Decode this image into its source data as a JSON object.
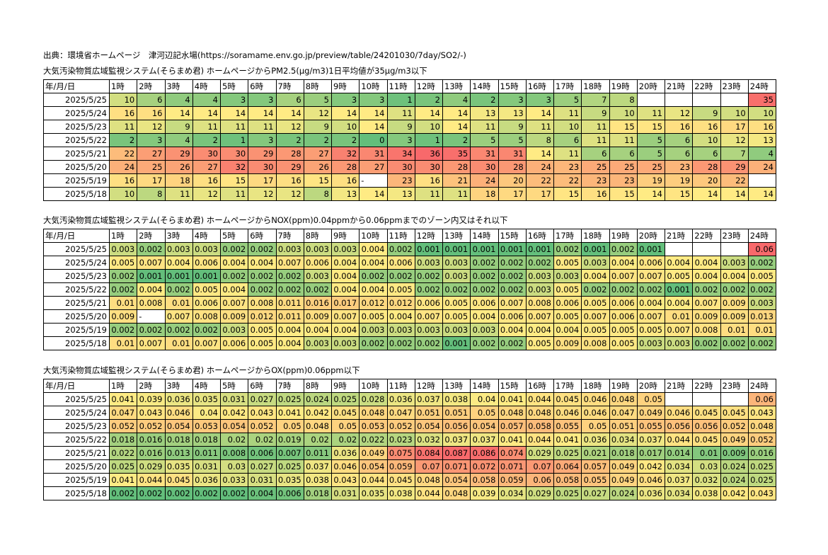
{
  "source_line": "出典：環境省ホームページ　津河辺記水場(https://soramame.env.go.jp/preview/table/24201030/7day/SO2/-)",
  "header_cells": [
    "年/月/日",
    "1時",
    "2時",
    "3時",
    "4時",
    "5時",
    "6時",
    "7時",
    "8時",
    "9時",
    "10時",
    "11時",
    "12時",
    "13時",
    "14時",
    "15時",
    "16時",
    "17時",
    "18時",
    "19時",
    "20時",
    "21時",
    "22時",
    "23時",
    "24時"
  ],
  "tables": [
    {
      "title": "大気汚染物質広域監視システム(そらまめ君) ホームページからPM2.5(μg/m3)1日平均値が35μg/m3以下",
      "threshold": 35,
      "rows": [
        {
          "date": "2025/5/25",
          "values": [
            "10",
            "6",
            "4",
            "4",
            "3",
            "3",
            "6",
            "5",
            "3",
            "3",
            "1",
            "2",
            "4",
            "2",
            "3",
            "3",
            "5",
            "7",
            "8",
            "",
            "",
            "",
            "",
            "35"
          ]
        },
        {
          "date": "2025/5/24",
          "values": [
            "16",
            "16",
            "14",
            "14",
            "14",
            "14",
            "14",
            "12",
            "14",
            "14",
            "11",
            "14",
            "14",
            "13",
            "13",
            "14",
            "11",
            "9",
            "10",
            "11",
            "12",
            "9",
            "10",
            "10"
          ]
        },
        {
          "date": "2025/5/23",
          "values": [
            "11",
            "12",
            "9",
            "11",
            "11",
            "11",
            "12",
            "9",
            "10",
            "14",
            "9",
            "10",
            "14",
            "11",
            "9",
            "11",
            "10",
            "11",
            "15",
            "15",
            "16",
            "16",
            "17",
            "16"
          ]
        },
        {
          "date": "2025/5/22",
          "values": [
            "2",
            "3",
            "4",
            "2",
            "1",
            "3",
            "2",
            "2",
            "2",
            "0",
            "3",
            "1",
            "2",
            "5",
            "5",
            "8",
            "6",
            "11",
            "11",
            "5",
            "6",
            "10",
            "12",
            "13"
          ]
        },
        {
          "date": "2025/5/21",
          "values": [
            "22",
            "27",
            "29",
            "30",
            "30",
            "29",
            "28",
            "27",
            "32",
            "31",
            "34",
            "36",
            "35",
            "31",
            "31",
            "14",
            "11",
            "6",
            "6",
            "5",
            "6",
            "6",
            "7",
            "4"
          ]
        },
        {
          "date": "2025/5/20",
          "values": [
            "24",
            "25",
            "26",
            "27",
            "32",
            "30",
            "29",
            "26",
            "28",
            "27",
            "30",
            "30",
            "28",
            "30",
            "28",
            "24",
            "23",
            "25",
            "25",
            "25",
            "23",
            "28",
            "29",
            "24"
          ]
        },
        {
          "date": "2025/5/19",
          "values": [
            "16",
            "17",
            "18",
            "16",
            "15",
            "17",
            "16",
            "15",
            "16",
            "-",
            "23",
            "16",
            "21",
            "24",
            "20",
            "22",
            "22",
            "23",
            "23",
            "19",
            "19",
            "20",
            "22",
            ""
          ]
        },
        {
          "date": "2025/5/18",
          "values": [
            "10",
            "8",
            "11",
            "12",
            "11",
            "12",
            "12",
            "8",
            "13",
            "14",
            "13",
            "11",
            "11",
            "18",
            "17",
            "17",
            "15",
            "16",
            "15",
            "14",
            "15",
            "14",
            "14",
            "14"
          ]
        }
      ]
    },
    {
      "title": "大気汚染物質広域監視システム(そらまめ君) ホームページからNOX(ppm)0.04ppmから0.06ppmまでのゾーン内又はそれ以下",
      "threshold": 0.06,
      "rows": [
        {
          "date": "2025/5/25",
          "values": [
            "0.003",
            "0.002",
            "0.003",
            "0.003",
            "0.002",
            "0.002",
            "0.003",
            "0.003",
            "0.003",
            "0.004",
            "0.002",
            "0.001",
            "0.001",
            "0.001",
            "0.001",
            "0.001",
            "0.002",
            "0.001",
            "0.002",
            "0.001",
            "",
            "",
            "",
            "0.06"
          ]
        },
        {
          "date": "2025/5/24",
          "values": [
            "0.005",
            "0.007",
            "0.004",
            "0.006",
            "0.004",
            "0.004",
            "0.007",
            "0.006",
            "0.004",
            "0.004",
            "0.006",
            "0.003",
            "0.003",
            "0.002",
            "0.002",
            "0.002",
            "0.005",
            "0.003",
            "0.004",
            "0.006",
            "0.004",
            "0.004",
            "0.003",
            "0.002"
          ]
        },
        {
          "date": "2025/5/23",
          "values": [
            "0.002",
            "0.001",
            "0.001",
            "0.001",
            "0.002",
            "0.002",
            "0.002",
            "0.003",
            "0.004",
            "0.002",
            "0.002",
            "0.002",
            "0.003",
            "0.002",
            "0.002",
            "0.003",
            "0.003",
            "0.004",
            "0.007",
            "0.007",
            "0.005",
            "0.004",
            "0.004",
            "0.005"
          ]
        },
        {
          "date": "2025/5/22",
          "values": [
            "0.002",
            "0.004",
            "0.002",
            "0.005",
            "0.004",
            "0.002",
            "0.002",
            "0.002",
            "0.004",
            "0.004",
            "0.005",
            "0.002",
            "0.002",
            "0.002",
            "0.002",
            "0.003",
            "0.005",
            "0.002",
            "0.002",
            "0.002",
            "0.001",
            "0.002",
            "0.002",
            "0.002"
          ]
        },
        {
          "date": "2025/5/21",
          "values": [
            "0.01",
            "0.008",
            "0.01",
            "0.006",
            "0.007",
            "0.008",
            "0.011",
            "0.016",
            "0.017",
            "0.012",
            "0.012",
            "0.006",
            "0.005",
            "0.006",
            "0.007",
            "0.008",
            "0.006",
            "0.005",
            "0.006",
            "0.004",
            "0.004",
            "0.007",
            "0.009",
            "0.003"
          ]
        },
        {
          "date": "2025/5/20",
          "values": [
            "0.009",
            "-",
            "0.007",
            "0.008",
            "0.009",
            "0.012",
            "0.011",
            "0.009",
            "0.007",
            "0.005",
            "0.004",
            "0.007",
            "0.005",
            "0.004",
            "0.006",
            "0.007",
            "0.005",
            "0.007",
            "0.006",
            "0.007",
            "0.01",
            "0.009",
            "0.009",
            "0.013"
          ]
        },
        {
          "date": "2025/5/19",
          "values": [
            "0.002",
            "0.002",
            "0.002",
            "0.002",
            "0.003",
            "0.005",
            "0.004",
            "0.004",
            "0.004",
            "0.003",
            "0.003",
            "0.003",
            "0.003",
            "0.003",
            "0.004",
            "0.004",
            "0.004",
            "0.005",
            "0.005",
            "0.005",
            "0.007",
            "0.008",
            "0.01",
            "0.01"
          ]
        },
        {
          "date": "2025/5/18",
          "values": [
            "0.01",
            "0.007",
            "0.01",
            "0.007",
            "0.006",
            "0.005",
            "0.004",
            "0.003",
            "0.003",
            "0.002",
            "0.002",
            "0.002",
            "0.001",
            "0.002",
            "0.002",
            "0.005",
            "0.009",
            "0.008",
            "0.005",
            "0.003",
            "0.003",
            "0.002",
            "0.002",
            "0.002"
          ]
        }
      ]
    },
    {
      "title": "大気汚染物質広域監視システム(そらまめ君) ホームページからOX(ppm)0.06ppm以下",
      "threshold": 0.06,
      "rows": [
        {
          "date": "2025/5/25",
          "values": [
            "0.041",
            "0.039",
            "0.036",
            "0.035",
            "0.031",
            "0.027",
            "0.025",
            "0.024",
            "0.025",
            "0.028",
            "0.036",
            "0.037",
            "0.038",
            "0.04",
            "0.041",
            "0.044",
            "0.045",
            "0.046",
            "0.048",
            "0.05",
            "",
            "",
            "",
            "0.06"
          ]
        },
        {
          "date": "2025/5/24",
          "values": [
            "0.047",
            "0.043",
            "0.046",
            "0.04",
            "0.042",
            "0.043",
            "0.041",
            "0.042",
            "0.045",
            "0.048",
            "0.047",
            "0.051",
            "0.051",
            "0.05",
            "0.048",
            "0.048",
            "0.046",
            "0.046",
            "0.047",
            "0.049",
            "0.046",
            "0.045",
            "0.045",
            "0.043"
          ]
        },
        {
          "date": "2025/5/23",
          "values": [
            "0.052",
            "0.052",
            "0.054",
            "0.053",
            "0.054",
            "0.052",
            "0.05",
            "0.048",
            "0.05",
            "0.053",
            "0.052",
            "0.054",
            "0.056",
            "0.054",
            "0.057",
            "0.058",
            "0.055",
            "0.05",
            "0.051",
            "0.055",
            "0.056",
            "0.056",
            "0.052",
            "0.048"
          ]
        },
        {
          "date": "2025/5/22",
          "values": [
            "0.018",
            "0.016",
            "0.018",
            "0.018",
            "0.02",
            "0.02",
            "0.019",
            "0.02",
            "0.02",
            "0.022",
            "0.023",
            "0.032",
            "0.037",
            "0.037",
            "0.041",
            "0.044",
            "0.041",
            "0.036",
            "0.034",
            "0.037",
            "0.044",
            "0.045",
            "0.049",
            "0.052"
          ]
        },
        {
          "date": "2025/5/21",
          "values": [
            "0.022",
            "0.016",
            "0.013",
            "0.011",
            "0.008",
            "0.006",
            "0.007",
            "0.011",
            "0.036",
            "0.049",
            "0.075",
            "0.084",
            "0.087",
            "0.086",
            "0.074",
            "0.029",
            "0.025",
            "0.021",
            "0.018",
            "0.017",
            "0.014",
            "0.01",
            "0.009",
            "0.016"
          ]
        },
        {
          "date": "2025/5/20",
          "values": [
            "0.025",
            "0.029",
            "0.035",
            "0.031",
            "0.03",
            "0.027",
            "0.025",
            "0.037",
            "0.046",
            "0.054",
            "0.059",
            "0.07",
            "0.071",
            "0.072",
            "0.071",
            "0.07",
            "0.064",
            "0.057",
            "0.049",
            "0.042",
            "0.034",
            "0.03",
            "0.024",
            "0.025"
          ]
        },
        {
          "date": "2025/5/19",
          "values": [
            "0.041",
            "0.044",
            "0.045",
            "0.036",
            "0.033",
            "0.031",
            "0.035",
            "0.038",
            "0.043",
            "0.044",
            "0.045",
            "0.048",
            "0.054",
            "0.058",
            "0.059",
            "0.06",
            "0.058",
            "0.055",
            "0.049",
            "0.046",
            "0.037",
            "0.032",
            "0.024",
            "0.025"
          ]
        },
        {
          "date": "2025/5/18",
          "values": [
            "0.002",
            "0.002",
            "0.002",
            "0.002",
            "0.002",
            "0.004",
            "0.006",
            "0.018",
            "0.031",
            "0.035",
            "0.038",
            "0.044",
            "0.048",
            "0.039",
            "0.034",
            "0.029",
            "0.025",
            "0.027",
            "0.024",
            "0.036",
            "0.034",
            "0.038",
            "0.042",
            "0.043"
          ]
        }
      ]
    }
  ],
  "colors": {
    "scale_low": "#63be7b",
    "scale_mid": "#ffeb84",
    "scale_high": "#f8696b"
  }
}
